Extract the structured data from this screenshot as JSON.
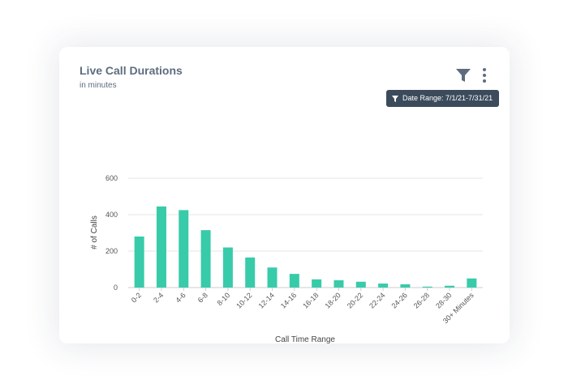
{
  "card": {
    "title": "Live Call Durations",
    "subtitle": "in minutes",
    "date_filter_label": "Date Range: 7/1/21-7/31/21",
    "filter_icon": "filter-icon",
    "menu_icon": "more-vertical-icon"
  },
  "colors": {
    "bar": "#38cba9",
    "grid": "#e6e6e6",
    "chip_bg": "#3b4b5c",
    "icon": "#5d6d7e"
  },
  "chart_data": {
    "type": "bar",
    "title": "",
    "xlabel": "Call Time Range",
    "ylabel": "# of Calls",
    "ylim": [
      0,
      600
    ],
    "yticks": [
      0,
      200,
      400,
      600
    ],
    "categories": [
      "0-2",
      "2-4",
      "4-6",
      "6-8",
      "8-10",
      "10-12",
      "12-14",
      "14-16",
      "16-18",
      "18-20",
      "20-22",
      "22-24",
      "24-26",
      "26-28",
      "28-30",
      "30+ Minutes"
    ],
    "values": [
      280,
      445,
      425,
      315,
      220,
      165,
      110,
      75,
      45,
      40,
      32,
      22,
      18,
      5,
      10,
      50
    ],
    "grid": true,
    "legend": "none"
  }
}
